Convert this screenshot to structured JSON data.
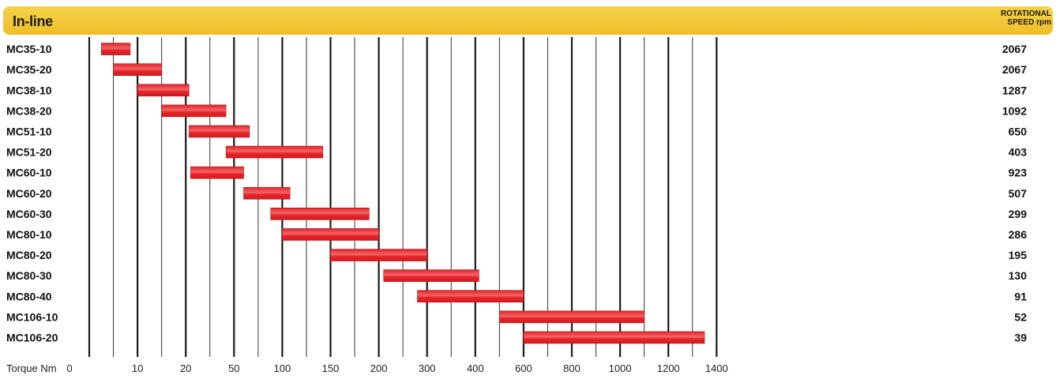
{
  "header": {
    "title": "In-line",
    "speed_line1": "ROTATIONAL",
    "speed_line2": "SPEED rpm"
  },
  "colors": {
    "bar": "#e8262b",
    "bar_highlight": "#f56a6c",
    "header": "#f2c230"
  },
  "chart_data": {
    "type": "bar",
    "orientation": "horizontal-range",
    "title": "In-line",
    "xlabel": "Torque Nm",
    "x_ticks": [
      "0",
      "10",
      "20",
      "50",
      "100",
      "150",
      "200",
      "300",
      "400",
      "600",
      "800",
      "1000",
      "1200",
      "1400"
    ],
    "series": [
      {
        "name": "MC35-10",
        "range": [
          2.5,
          8.5
        ],
        "speed": "2067"
      },
      {
        "name": "MC35-20",
        "range": [
          5,
          15
        ],
        "speed": "2067"
      },
      {
        "name": "MC38-10",
        "range": [
          10,
          22
        ],
        "speed": "1287"
      },
      {
        "name": "MC38-20",
        "range": [
          15,
          45
        ],
        "speed": "1092"
      },
      {
        "name": "MC51-10",
        "range": [
          22,
          66
        ],
        "speed": "650"
      },
      {
        "name": "MC51-20",
        "range": [
          45,
          142
        ],
        "speed": "403"
      },
      {
        "name": "MC60-10",
        "range": [
          23,
          60
        ],
        "speed": "923"
      },
      {
        "name": "MC60-20",
        "range": [
          60,
          108
        ],
        "speed": "507"
      },
      {
        "name": "MC60-30",
        "range": [
          88,
          190
        ],
        "speed": "299"
      },
      {
        "name": "MC80-10",
        "range": [
          100,
          200
        ],
        "speed": "286"
      },
      {
        "name": "MC80-20",
        "range": [
          150,
          300
        ],
        "speed": "195"
      },
      {
        "name": "MC80-30",
        "range": [
          210,
          415
        ],
        "speed": "130"
      },
      {
        "name": "MC80-40",
        "range": [
          280,
          600
        ],
        "speed": "91"
      },
      {
        "name": "MC106-10",
        "range": [
          500,
          1100
        ],
        "speed": "52"
      },
      {
        "name": "MC106-20",
        "range": [
          600,
          1350
        ],
        "speed": "39"
      }
    ],
    "right_column_label": "ROTATIONAL SPEED rpm",
    "grid": true
  }
}
